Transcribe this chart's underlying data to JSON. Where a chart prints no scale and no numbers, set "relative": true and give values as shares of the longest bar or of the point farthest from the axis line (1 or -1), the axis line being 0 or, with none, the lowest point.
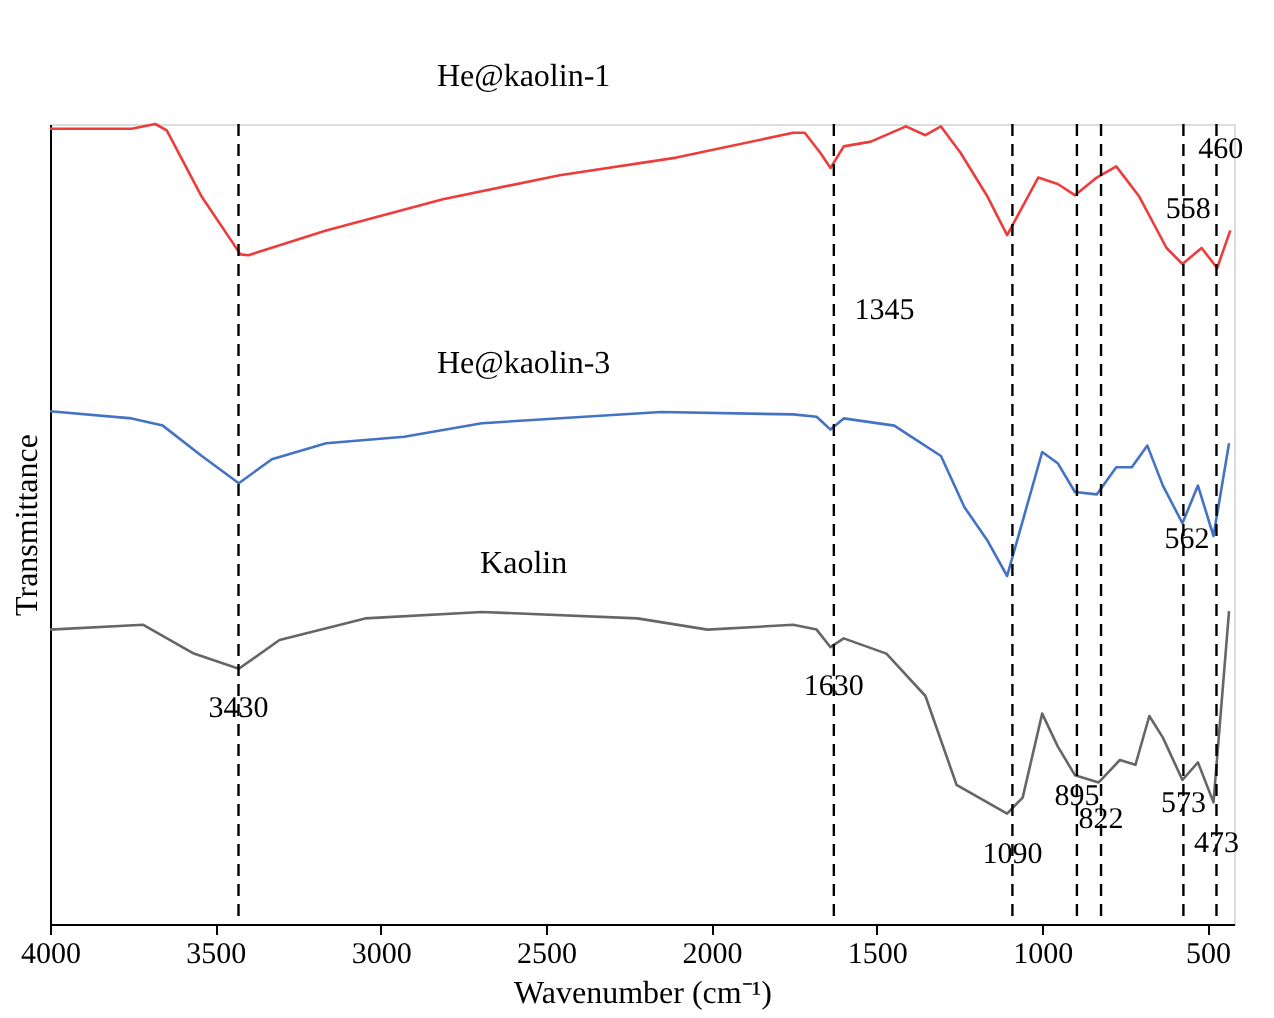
{
  "chart_data": {
    "type": "line",
    "relative": true,
    "xlabel": "Wavenumber (cm⁻¹)",
    "ylabel": "Transmittance",
    "xlim": [
      4000,
      420
    ],
    "xticks": [
      4000,
      3500,
      3000,
      2500,
      2000,
      1500,
      1000,
      500
    ],
    "grid": false,
    "line_style": "solid",
    "marker": "none",
    "series": [
      {
        "name": "He@kaolin-1",
        "color": "#ee3b3b",
        "x": [
          4000,
          3753,
          3682,
          3647,
          3541,
          3424,
          3400,
          3165,
          2812,
          2459,
          2106,
          1753,
          1718,
          1671,
          1640,
          1600,
          1518,
          1412,
          1353,
          1306,
          1247,
          1165,
          1106,
          1012,
          953,
          901,
          835,
          776,
          706,
          624,
          576,
          518,
          471,
          431
        ],
        "values": [
          0.994,
          0.994,
          1.0,
          0.992,
          0.909,
          0.837,
          0.836,
          0.867,
          0.906,
          0.936,
          0.958,
          0.989,
          0.989,
          0.964,
          0.945,
          0.972,
          0.978,
          0.997,
          0.986,
          0.997,
          0.964,
          0.909,
          0.861,
          0.933,
          0.925,
          0.911,
          0.933,
          0.947,
          0.909,
          0.845,
          0.825,
          0.845,
          0.82,
          0.867
        ]
      },
      {
        "name": "He@kaolin-3",
        "color": "#4472c4",
        "x": [
          4000,
          3753,
          3659,
          3541,
          3429,
          3329,
          3165,
          2929,
          2694,
          2153,
          1753,
          1682,
          1640,
          1600,
          1447,
          1388,
          1306,
          1235,
          1165,
          1106,
          1000,
          953,
          901,
          835,
          776,
          729,
          682,
          635,
          576,
          529,
          482,
          435
        ],
        "values": [
          0.641,
          0.632,
          0.623,
          0.585,
          0.551,
          0.581,
          0.601,
          0.609,
          0.626,
          0.64,
          0.637,
          0.634,
          0.618,
          0.632,
          0.623,
          0.607,
          0.585,
          0.521,
          0.479,
          0.435,
          0.59,
          0.576,
          0.54,
          0.537,
          0.571,
          0.571,
          0.598,
          0.548,
          0.501,
          0.548,
          0.485,
          0.601
        ]
      },
      {
        "name": "Kaolin",
        "color": "#666666",
        "x": [
          4000,
          3718,
          3565,
          3429,
          3306,
          3047,
          2694,
          2224,
          2012,
          1753,
          1682,
          1640,
          1600,
          1471,
          1353,
          1259,
          1106,
          1059,
          1000,
          953,
          901,
          829,
          765,
          718,
          676,
          635,
          576,
          529,
          482,
          435
        ],
        "values": [
          0.368,
          0.374,
          0.338,
          0.319,
          0.355,
          0.382,
          0.39,
          0.382,
          0.368,
          0.374,
          0.368,
          0.346,
          0.357,
          0.338,
          0.285,
          0.174,
          0.138,
          0.158,
          0.263,
          0.222,
          0.186,
          0.177,
          0.205,
          0.199,
          0.26,
          0.233,
          0.18,
          0.202,
          0.152,
          0.391
        ]
      }
    ],
    "ref_lines": [
      {
        "axis": "x",
        "value": 3430,
        "line_style": "dashed",
        "color": "#000000"
      },
      {
        "axis": "x",
        "value": 1630,
        "line_style": "dashed",
        "color": "#000000"
      },
      {
        "axis": "x",
        "value": 1090,
        "line_style": "dashed",
        "color": "#000000"
      },
      {
        "axis": "x",
        "value": 895,
        "line_style": "dashed",
        "color": "#000000"
      },
      {
        "axis": "x",
        "value": 822,
        "line_style": "dashed",
        "color": "#000000"
      },
      {
        "axis": "x",
        "value": 573,
        "line_style": "dashed",
        "color": "#000000"
      },
      {
        "axis": "x",
        "value": 473,
        "line_style": "dashed",
        "color": "#000000"
      }
    ],
    "annotations": [
      {
        "text": "3430",
        "x": 3430,
        "y": 0.271
      },
      {
        "text": "1630",
        "x": 1630,
        "y": 0.299
      },
      {
        "text": "1090",
        "x": 1090,
        "y": 0.089
      },
      {
        "text": "895",
        "x": 895,
        "y": 0.161
      },
      {
        "text": "822",
        "x": 822,
        "y": 0.133
      },
      {
        "text": "573",
        "x": 573,
        "y": 0.152
      },
      {
        "text": "473",
        "x": 473,
        "y": 0.102
      },
      {
        "text": "562",
        "x": 562,
        "y": 0.482
      },
      "1345",
      {
        "text": "558",
        "x": 558,
        "y": 0.895
      },
      {
        "text": "460",
        "x": 460,
        "y": 0.97
      }
    ]
  }
}
